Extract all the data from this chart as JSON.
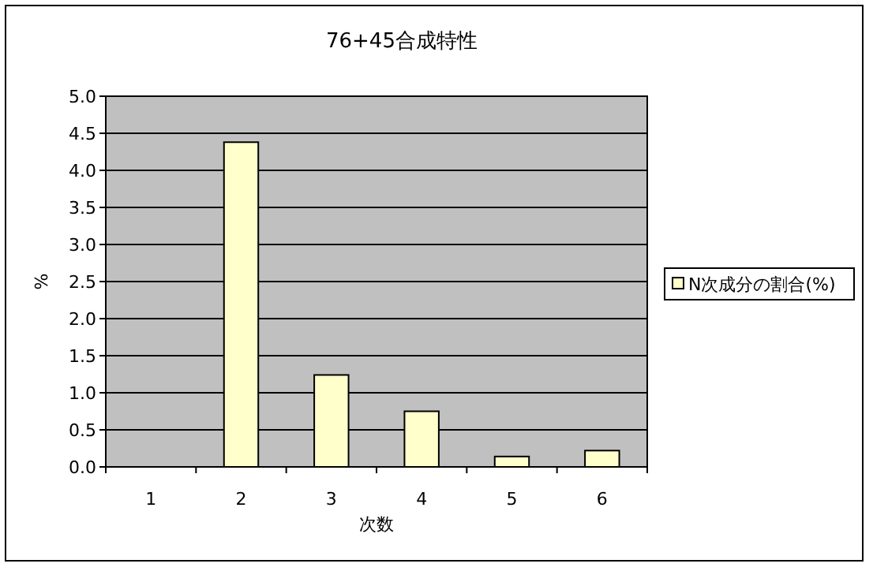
{
  "chart_data": {
    "type": "bar",
    "title": "76+45合成特性",
    "xlabel": "次数",
    "ylabel": "%",
    "categories": [
      "1",
      "2",
      "3",
      "4",
      "5",
      "6"
    ],
    "series": [
      {
        "name": "N次成分の割合(%)",
        "color": "#ffffcc",
        "values": [
          0,
          4.38,
          1.24,
          0.75,
          0.14,
          0.22
        ]
      }
    ],
    "ylim": [
      0,
      5
    ],
    "yticks": [
      {
        "value": 0,
        "label": "0.0"
      },
      {
        "value": 0.5,
        "label": "0.5"
      },
      {
        "value": 1,
        "label": "1.0"
      },
      {
        "value": 1.5,
        "label": "1.5"
      },
      {
        "value": 2,
        "label": "2.0"
      },
      {
        "value": 2.5,
        "label": "2.5"
      },
      {
        "value": 3,
        "label": "3.0"
      },
      {
        "value": 3.5,
        "label": "3.5"
      },
      {
        "value": 4,
        "label": "4.0"
      },
      {
        "value": 4.5,
        "label": "4.5"
      },
      {
        "value": 5,
        "label": "5.0"
      }
    ],
    "grid": "y",
    "legend": "right"
  }
}
